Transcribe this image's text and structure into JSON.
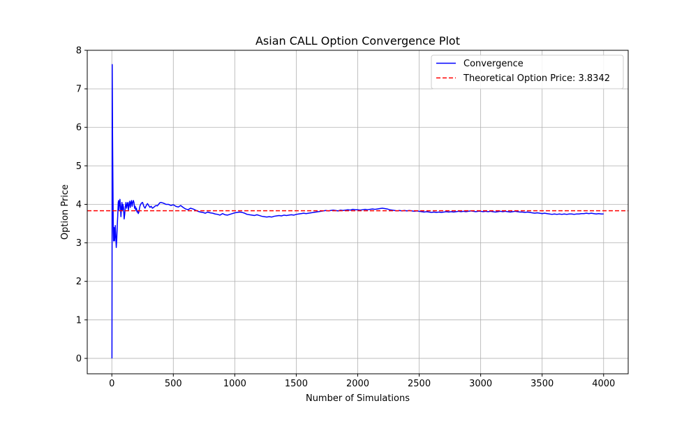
{
  "chart_data": {
    "type": "line",
    "title": "Asian CALL Option Convergence Plot",
    "xlabel": "Number of Simulations",
    "ylabel": "Option Price",
    "xlim": [
      -200,
      4200
    ],
    "ylim": [
      -0.4,
      8.0
    ],
    "x_ticks": [
      0,
      500,
      1000,
      1500,
      2000,
      2500,
      3000,
      3500,
      4000
    ],
    "y_ticks": [
      0,
      1,
      2,
      3,
      4,
      5,
      6,
      7,
      8
    ],
    "grid": true,
    "legend_position": "top-right",
    "series": [
      {
        "name": "Convergence",
        "color": "#0000ff",
        "style": "solid",
        "points": [
          [
            1,
            0
          ],
          [
            2,
            2.6
          ],
          [
            3,
            7.63
          ],
          [
            5,
            6.4
          ],
          [
            6,
            5.8
          ],
          [
            8,
            4.9
          ],
          [
            10,
            4.1
          ],
          [
            12,
            3.3
          ],
          [
            14,
            3.05
          ],
          [
            16,
            3.15
          ],
          [
            18,
            3.4
          ],
          [
            20,
            3.25
          ],
          [
            22,
            3.05
          ],
          [
            25,
            3.2
          ],
          [
            28,
            3.45
          ],
          [
            30,
            3.3
          ],
          [
            33,
            3.1
          ],
          [
            36,
            2.88
          ],
          [
            40,
            3.1
          ],
          [
            44,
            3.45
          ],
          [
            48,
            3.7
          ],
          [
            52,
            4.05
          ],
          [
            55,
            4.1
          ],
          [
            58,
            3.85
          ],
          [
            62,
            4.0
          ],
          [
            66,
            4.13
          ],
          [
            70,
            3.95
          ],
          [
            74,
            3.68
          ],
          [
            78,
            3.9
          ],
          [
            82,
            4.05
          ],
          [
            86,
            3.85
          ],
          [
            90,
            4.0
          ],
          [
            95,
            3.92
          ],
          [
            100,
            3.62
          ],
          [
            105,
            3.75
          ],
          [
            110,
            3.95
          ],
          [
            115,
            4.05
          ],
          [
            120,
            3.9
          ],
          [
            125,
            4.0
          ],
          [
            130,
            4.05
          ],
          [
            135,
            3.85
          ],
          [
            140,
            4.0
          ],
          [
            145,
            4.08
          ],
          [
            150,
            3.92
          ],
          [
            155,
            4.05
          ],
          [
            160,
            4.1
          ],
          [
            165,
            3.95
          ],
          [
            170,
            4.05
          ],
          [
            175,
            4.1
          ],
          [
            180,
            4.05
          ],
          [
            185,
            3.9
          ],
          [
            190,
            3.95
          ],
          [
            195,
            3.85
          ],
          [
            200,
            3.9
          ],
          [
            205,
            3.8
          ],
          [
            210,
            3.82
          ],
          [
            215,
            3.76
          ],
          [
            220,
            3.8
          ],
          [
            225,
            3.9
          ],
          [
            230,
            3.97
          ],
          [
            240,
            4.03
          ],
          [
            250,
            4.05
          ],
          [
            260,
            3.95
          ],
          [
            270,
            3.9
          ],
          [
            280,
            3.97
          ],
          [
            290,
            4.02
          ],
          [
            300,
            3.97
          ],
          [
            310,
            3.92
          ],
          [
            320,
            3.95
          ],
          [
            330,
            3.9
          ],
          [
            340,
            3.92
          ],
          [
            350,
            3.95
          ],
          [
            360,
            3.97
          ],
          [
            370,
            3.96
          ],
          [
            380,
            4.0
          ],
          [
            390,
            4.04
          ],
          [
            400,
            4.05
          ],
          [
            420,
            4.03
          ],
          [
            440,
            4.0
          ],
          [
            460,
            4.0
          ],
          [
            480,
            3.97
          ],
          [
            500,
            3.99
          ],
          [
            520,
            3.95
          ],
          [
            540,
            3.93
          ],
          [
            560,
            3.97
          ],
          [
            580,
            3.92
          ],
          [
            600,
            3.88
          ],
          [
            620,
            3.86
          ],
          [
            640,
            3.9
          ],
          [
            660,
            3.88
          ],
          [
            680,
            3.85
          ],
          [
            700,
            3.82
          ],
          [
            720,
            3.8
          ],
          [
            740,
            3.79
          ],
          [
            760,
            3.77
          ],
          [
            780,
            3.8
          ],
          [
            800,
            3.78
          ],
          [
            820,
            3.77
          ],
          [
            840,
            3.75
          ],
          [
            860,
            3.74
          ],
          [
            880,
            3.72
          ],
          [
            900,
            3.76
          ],
          [
            920,
            3.73
          ],
          [
            940,
            3.72
          ],
          [
            960,
            3.74
          ],
          [
            980,
            3.76
          ],
          [
            1000,
            3.78
          ],
          [
            1020,
            3.79
          ],
          [
            1040,
            3.8
          ],
          [
            1060,
            3.79
          ],
          [
            1080,
            3.77
          ],
          [
            1100,
            3.74
          ],
          [
            1120,
            3.73
          ],
          [
            1140,
            3.72
          ],
          [
            1160,
            3.71
          ],
          [
            1180,
            3.73
          ],
          [
            1200,
            3.71
          ],
          [
            1220,
            3.69
          ],
          [
            1240,
            3.68
          ],
          [
            1260,
            3.67
          ],
          [
            1280,
            3.68
          ],
          [
            1300,
            3.67
          ],
          [
            1320,
            3.69
          ],
          [
            1340,
            3.7
          ],
          [
            1360,
            3.71
          ],
          [
            1380,
            3.7
          ],
          [
            1400,
            3.72
          ],
          [
            1420,
            3.71
          ],
          [
            1440,
            3.72
          ],
          [
            1460,
            3.73
          ],
          [
            1480,
            3.72
          ],
          [
            1500,
            3.74
          ],
          [
            1520,
            3.75
          ],
          [
            1540,
            3.76
          ],
          [
            1560,
            3.77
          ],
          [
            1580,
            3.76
          ],
          [
            1600,
            3.77
          ],
          [
            1620,
            3.78
          ],
          [
            1640,
            3.79
          ],
          [
            1660,
            3.8
          ],
          [
            1680,
            3.81
          ],
          [
            1700,
            3.82
          ],
          [
            1720,
            3.83
          ],
          [
            1740,
            3.84
          ],
          [
            1760,
            3.83
          ],
          [
            1780,
            3.84
          ],
          [
            1800,
            3.85
          ],
          [
            1820,
            3.84
          ],
          [
            1840,
            3.83
          ],
          [
            1860,
            3.85
          ],
          [
            1880,
            3.84
          ],
          [
            1900,
            3.85
          ],
          [
            1920,
            3.86
          ],
          [
            1940,
            3.85
          ],
          [
            1960,
            3.87
          ],
          [
            1980,
            3.86
          ],
          [
            2000,
            3.86
          ],
          [
            2020,
            3.85
          ],
          [
            2040,
            3.86
          ],
          [
            2060,
            3.87
          ],
          [
            2080,
            3.86
          ],
          [
            2100,
            3.87
          ],
          [
            2120,
            3.88
          ],
          [
            2140,
            3.87
          ],
          [
            2160,
            3.88
          ],
          [
            2180,
            3.89
          ],
          [
            2200,
            3.9
          ],
          [
            2220,
            3.89
          ],
          [
            2240,
            3.88
          ],
          [
            2260,
            3.86
          ],
          [
            2280,
            3.85
          ],
          [
            2300,
            3.84
          ],
          [
            2320,
            3.83
          ],
          [
            2340,
            3.84
          ],
          [
            2360,
            3.83
          ],
          [
            2380,
            3.84
          ],
          [
            2400,
            3.83
          ],
          [
            2420,
            3.84
          ],
          [
            2440,
            3.83
          ],
          [
            2460,
            3.82
          ],
          [
            2480,
            3.83
          ],
          [
            2500,
            3.82
          ],
          [
            2520,
            3.81
          ],
          [
            2540,
            3.8
          ],
          [
            2560,
            3.81
          ],
          [
            2580,
            3.8
          ],
          [
            2600,
            3.79
          ],
          [
            2620,
            3.8
          ],
          [
            2640,
            3.79
          ],
          [
            2660,
            3.8
          ],
          [
            2680,
            3.79
          ],
          [
            2700,
            3.8
          ],
          [
            2720,
            3.81
          ],
          [
            2740,
            3.8
          ],
          [
            2760,
            3.81
          ],
          [
            2780,
            3.8
          ],
          [
            2800,
            3.81
          ],
          [
            2820,
            3.82
          ],
          [
            2840,
            3.81
          ],
          [
            2860,
            3.82
          ],
          [
            2880,
            3.81
          ],
          [
            2900,
            3.82
          ],
          [
            2920,
            3.83
          ],
          [
            2940,
            3.82
          ],
          [
            2960,
            3.81
          ],
          [
            2980,
            3.82
          ],
          [
            3000,
            3.82
          ],
          [
            3020,
            3.81
          ],
          [
            3040,
            3.82
          ],
          [
            3060,
            3.81
          ],
          [
            3080,
            3.82
          ],
          [
            3100,
            3.81
          ],
          [
            3120,
            3.8
          ],
          [
            3140,
            3.81
          ],
          [
            3160,
            3.82
          ],
          [
            3180,
            3.81
          ],
          [
            3200,
            3.82
          ],
          [
            3220,
            3.81
          ],
          [
            3240,
            3.8
          ],
          [
            3260,
            3.81
          ],
          [
            3280,
            3.82
          ],
          [
            3300,
            3.81
          ],
          [
            3320,
            3.8
          ],
          [
            3340,
            3.8
          ],
          [
            3360,
            3.79
          ],
          [
            3380,
            3.8
          ],
          [
            3400,
            3.79
          ],
          [
            3420,
            3.78
          ],
          [
            3440,
            3.77
          ],
          [
            3460,
            3.78
          ],
          [
            3480,
            3.77
          ],
          [
            3500,
            3.76
          ],
          [
            3520,
            3.77
          ],
          [
            3540,
            3.76
          ],
          [
            3560,
            3.75
          ],
          [
            3580,
            3.74
          ],
          [
            3600,
            3.75
          ],
          [
            3620,
            3.74
          ],
          [
            3640,
            3.75
          ],
          [
            3660,
            3.74
          ],
          [
            3680,
            3.75
          ],
          [
            3700,
            3.74
          ],
          [
            3720,
            3.75
          ],
          [
            3740,
            3.75
          ],
          [
            3760,
            3.74
          ],
          [
            3780,
            3.75
          ],
          [
            3800,
            3.75
          ],
          [
            3820,
            3.76
          ],
          [
            3840,
            3.76
          ],
          [
            3860,
            3.77
          ],
          [
            3880,
            3.76
          ],
          [
            3900,
            3.77
          ],
          [
            3920,
            3.76
          ],
          [
            3940,
            3.75
          ],
          [
            3960,
            3.76
          ],
          [
            3980,
            3.75
          ],
          [
            4000,
            3.75
          ]
        ]
      },
      {
        "name": "Theoretical Option Price: 3.8342",
        "color": "#ff0000",
        "style": "dashed",
        "y": 3.8342
      }
    ]
  }
}
